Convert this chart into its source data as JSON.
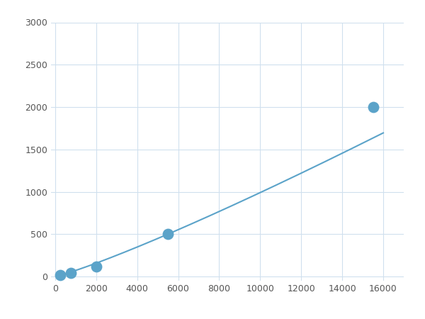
{
  "x": [
    250,
    750,
    2000,
    5500,
    15500
  ],
  "y": [
    20,
    40,
    120,
    500,
    2000
  ],
  "line_color": "#5ba3c9",
  "marker_color": "#5ba3c9",
  "marker_size": 6,
  "xlim": [
    -200,
    17000
  ],
  "ylim": [
    -50,
    3000
  ],
  "xticks": [
    0,
    2000,
    4000,
    6000,
    8000,
    10000,
    12000,
    14000,
    16000
  ],
  "yticks": [
    0,
    500,
    1000,
    1500,
    2000,
    2500,
    3000
  ],
  "grid_color": "#d0e0ee",
  "background_color": "#ffffff",
  "figsize": [
    6.0,
    4.5
  ],
  "dpi": 100
}
